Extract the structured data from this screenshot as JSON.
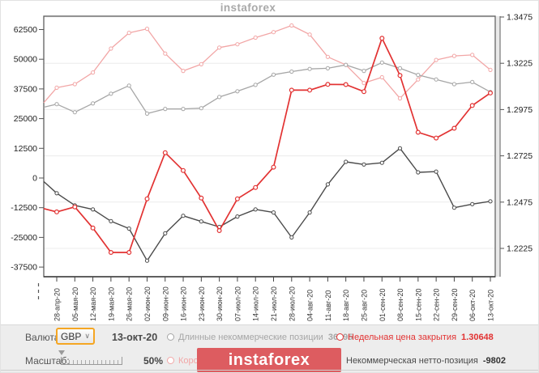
{
  "watermark": "instaforex",
  "colors": {
    "short_line": "#f2a6a6",
    "long_line": "#a6a6a6",
    "net_line": "#4a4a4a",
    "price_line": "#e23232",
    "banner": "#dd5c60",
    "accent_border": "#f5a623"
  },
  "icons": {
    "chevron_down": "∨"
  },
  "controls": {
    "currency_label": "Валюта:",
    "currency_value": "GBP",
    "date": "13-окт-20",
    "scale_label": "Масштаб:",
    "scale_value": "50%"
  },
  "legend": {
    "long": {
      "label": "Длинные некоммерческие позиции",
      "value": "36195"
    },
    "price": {
      "label": "Недельная цена закрытия",
      "value": "1.30648"
    },
    "short": {
      "label": "Короткие некоммерческие позиции"
    },
    "net": {
      "label": "Некоммерческая нетто-позиция",
      "value": "-9802"
    }
  },
  "logo": {
    "text": "instaforex"
  },
  "chart_data": {
    "type": "line",
    "title": "",
    "xlabel": "",
    "ylabel_left": "",
    "ylabel_right": "",
    "grid": true,
    "legend_position": "bottom",
    "left_axis_ticks": [
      "62500",
      "50000",
      "37500",
      "25000",
      "12500",
      "0",
      "-12500",
      "-25000",
      "-37500"
    ],
    "right_axis_ticks": [
      "1.3475",
      "1.3225",
      "1.2975",
      "1.2725",
      "1.2475",
      "1.2225"
    ],
    "left_axis_range": [
      -42500,
      67500
    ],
    "right_axis_range": [
      1.2085,
      1.348
    ],
    "categories": [
      "28-апр-20",
      "05-мая-20",
      "12-мая-20",
      "19-мая-20",
      "26-мая-20",
      "02-июн-20",
      "09-июн-20",
      "16-июн-20",
      "23-июн-20",
      "30-июн-20",
      "07-июл-20",
      "14-июл-20",
      "21-июл-20",
      "28-июл-20",
      "04-авг-20",
      "11-авг-20",
      "18-авг-20",
      "25-авг-20",
      "01-сен-20",
      "08-сен-20",
      "15-сен-20",
      "22-сен-20",
      "29-сен-20",
      "06-окт-20",
      "13-окт-20"
    ],
    "note": "first value of each series is an unlabeled lead-in point at the plot's left edge",
    "series": [
      {
        "name": "Короткие некоммерческие позиции",
        "axis": "left",
        "color": "#f2a6a6",
        "width": 1.3,
        "values": [
          31700,
          38000,
          39500,
          44400,
          54500,
          61100,
          62800,
          52400,
          45100,
          47900,
          54900,
          56300,
          59100,
          61400,
          64200,
          60400,
          51000,
          47600,
          40000,
          42400,
          33500,
          41500,
          49700,
          51400,
          51800,
          45500
        ]
      },
      {
        "name": "Длинные некоммерческие позиции",
        "axis": "left",
        "color": "#a6a6a6",
        "width": 1.3,
        "values": [
          29800,
          31100,
          27700,
          31400,
          35500,
          38900,
          27100,
          29100,
          29100,
          29400,
          34100,
          36500,
          39200,
          43500,
          44800,
          45900,
          46200,
          47600,
          45100,
          48600,
          46200,
          43400,
          41500,
          39500,
          40400,
          36195
        ]
      },
      {
        "name": "Некоммерческая нетто-позиция",
        "axis": "left",
        "color": "#4a4a4a",
        "width": 1.4,
        "values": [
          -1500,
          -6400,
          -11500,
          -13200,
          -18200,
          -21300,
          -34800,
          -23300,
          -15900,
          -18300,
          -20600,
          -16200,
          -13200,
          -14500,
          -25000,
          -14500,
          -2700,
          6800,
          5700,
          6400,
          12500,
          2400,
          2700,
          -12500,
          -11000,
          -9802
        ]
      },
      {
        "name": "Недельная цена закрытия",
        "axis": "right",
        "color": "#e23232",
        "width": 1.7,
        "values": [
          1.244,
          1.2422,
          1.2449,
          1.2335,
          1.2203,
          1.2203,
          1.2493,
          1.2742,
          1.2646,
          1.2497,
          1.2321,
          1.2493,
          1.2554,
          1.2664,
          1.308,
          1.308,
          1.3111,
          1.311,
          1.3072,
          1.336,
          1.3159,
          1.2852,
          1.2821,
          1.2874,
          1.2997,
          1.30648
        ]
      }
    ]
  }
}
